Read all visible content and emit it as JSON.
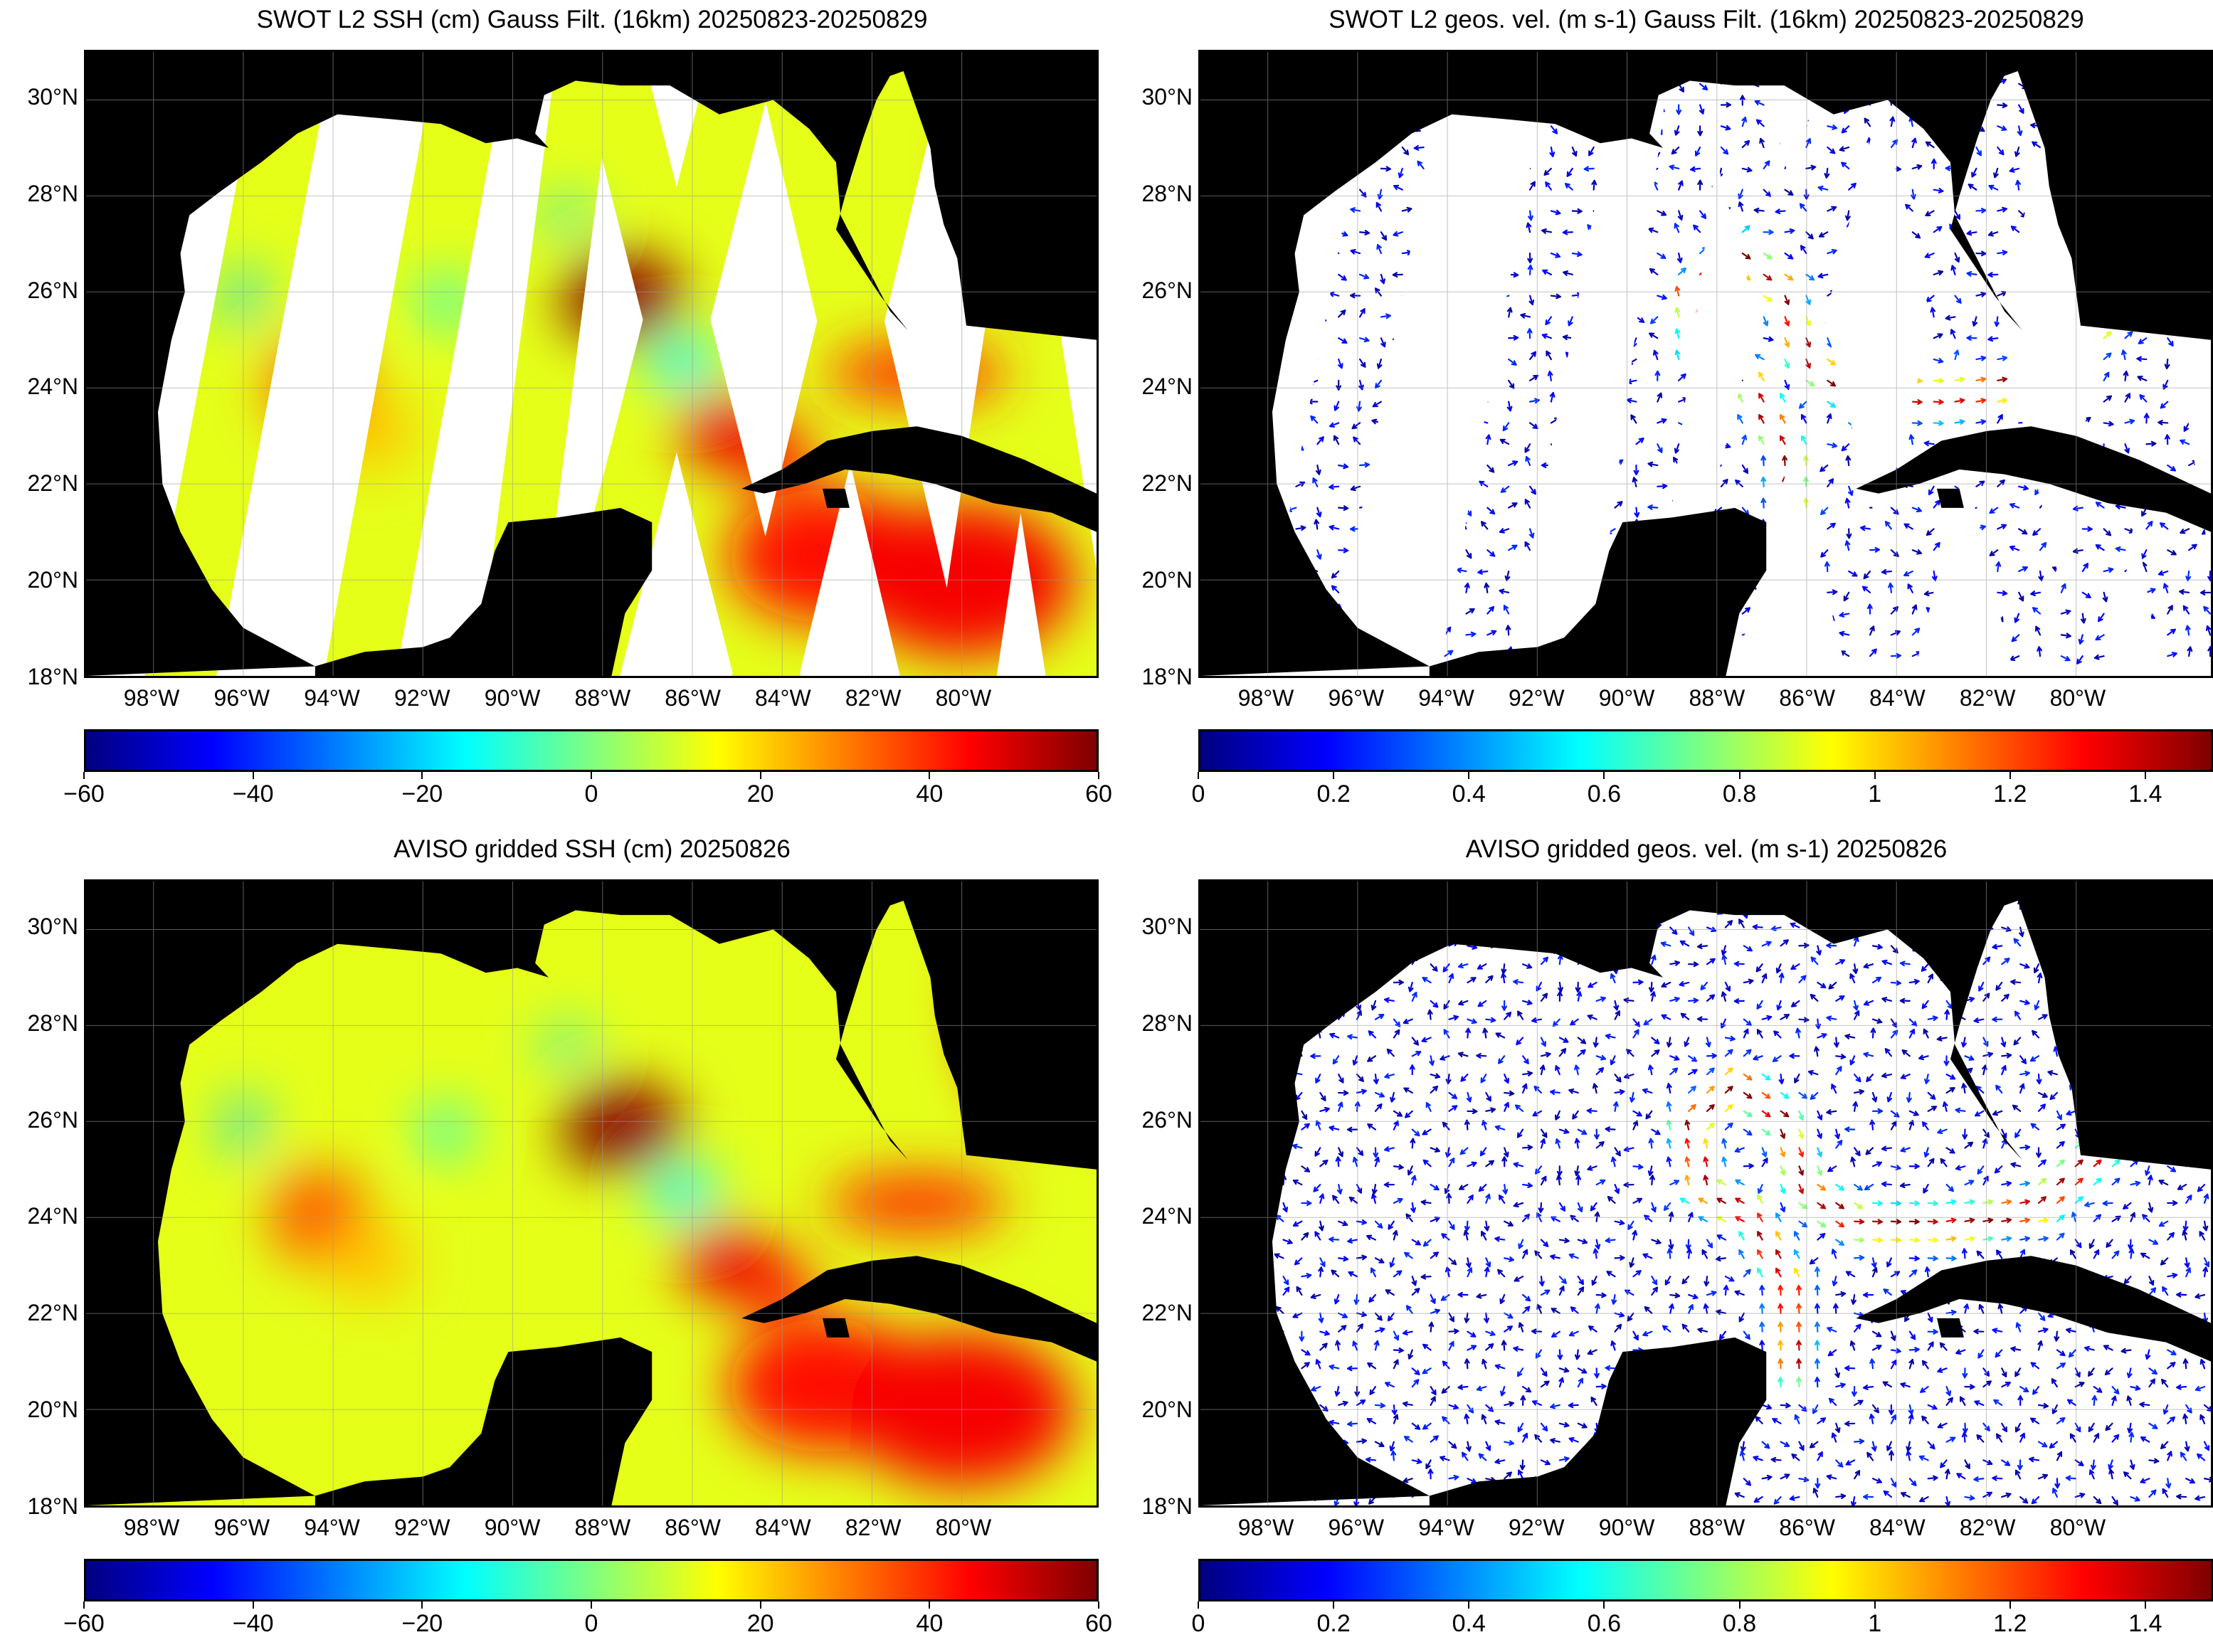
{
  "colors": {
    "land": "#000000",
    "ocean_nodata": "#ffffff",
    "grid": "#9a9a9a"
  },
  "colormap": [
    "#00007f",
    "#0000ff",
    "#007fff",
    "#00ffff",
    "#7fff7f",
    "#ffff00",
    "#ff7f00",
    "#ff0000",
    "#7f0000"
  ],
  "map_axes": {
    "lat_ticks": [
      "30°N",
      "28°N",
      "26°N",
      "24°N",
      "22°N",
      "20°N",
      "18°N"
    ],
    "lon_ticks": [
      "98°W",
      "96°W",
      "94°W",
      "92°W",
      "90°W",
      "88°W",
      "86°W",
      "84°W",
      "82°W",
      "80°W"
    ]
  },
  "panels": [
    {
      "title": "SWOT L2 SSH (cm) Gauss Filt. (16km) 20250823-20250829",
      "product": "ssh",
      "coverage": "swaths",
      "colorbar_ticks": [
        "−60",
        "−40",
        "−20",
        "0",
        "20",
        "40",
        "60"
      ],
      "colorbar_range": [
        -60,
        60
      ]
    },
    {
      "title": "SWOT L2 geos. vel. (m s-1) Gauss Filt. (16km) 20250823-20250829",
      "product": "velocity",
      "coverage": "swaths",
      "colorbar_ticks": [
        "0",
        "0.2",
        "0.4",
        "0.6",
        "0.8",
        "1",
        "1.2",
        "1.4"
      ],
      "colorbar_range": [
        0,
        1.5
      ]
    },
    {
      "title": "AVISO gridded SSH (cm) 20250826",
      "product": "ssh",
      "coverage": "full",
      "colorbar_ticks": [
        "−60",
        "−40",
        "−20",
        "0",
        "20",
        "40",
        "60"
      ],
      "colorbar_range": [
        -60,
        60
      ]
    },
    {
      "title": "AVISO gridded geos. vel. (m s-1)  20250826",
      "product": "velocity",
      "coverage": "full",
      "colorbar_ticks": [
        "0",
        "0.2",
        "0.4",
        "0.6",
        "0.8",
        "1",
        "1.2",
        "1.4"
      ],
      "colorbar_range": [
        0,
        1.5
      ]
    }
  ]
}
